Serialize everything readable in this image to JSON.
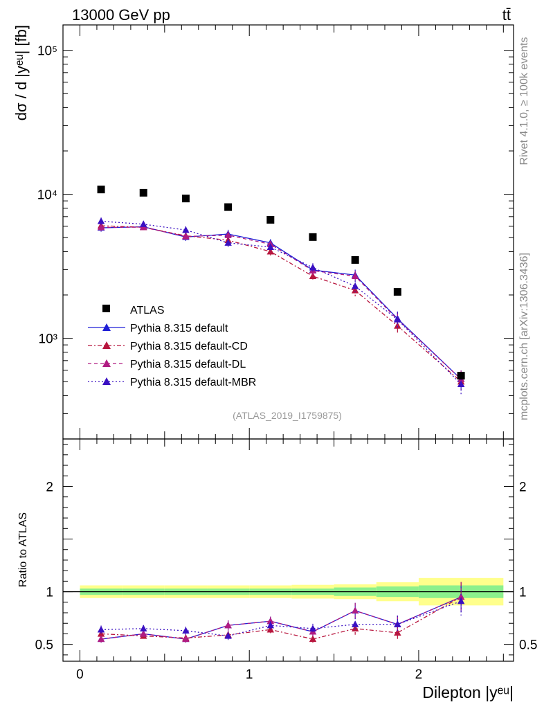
{
  "header": {
    "energy_label": "13000 GeV pp",
    "process_label": "tt̄",
    "side_label_top": "Rivet 4.1.0, ≥ 100k events",
    "side_label_bottom": "mcplots.cern.ch [arXiv:1306.3436]",
    "analysis_id": "(ATLAS_2019_I1759875)"
  },
  "chart_data": {
    "type": "line",
    "title": "",
    "xlabel": "Dilepton |yᵉᵘ|",
    "ylabel": "dσ / d |yᵉᵘ| [fb]",
    "ratio_ylabel": "Ratio to ATLAS",
    "xlim": [
      -0.1,
      2.56
    ],
    "ylim": [
      200,
      150000
    ],
    "yscale": "log",
    "ratio_ylim": [
      0.34,
      2.45
    ],
    "x_ticks": [
      0,
      1,
      2
    ],
    "x_tick_labels": [
      "0",
      "1",
      "2"
    ],
    "y_ticks": [
      1000,
      10000,
      100000
    ],
    "y_tick_labels": [
      "10³",
      "10⁴",
      "10⁵"
    ],
    "ratio_ticks": [
      0.5,
      1,
      2
    ],
    "ratio_tick_labels": [
      "0.5",
      "1",
      "2"
    ],
    "bins": [
      [
        0,
        0.25
      ],
      [
        0.25,
        0.5
      ],
      [
        0.5,
        0.75
      ],
      [
        0.75,
        1.0
      ],
      [
        1.0,
        1.25
      ],
      [
        1.25,
        1.5
      ],
      [
        1.5,
        1.75
      ],
      [
        1.75,
        2.0
      ],
      [
        2.0,
        2.5
      ]
    ],
    "x": [
      0.125,
      0.375,
      0.625,
      0.875,
      1.125,
      1.375,
      1.625,
      1.875,
      2.25
    ],
    "data": {
      "name": "ATLAS",
      "values": [
        10800,
        10250,
        9350,
        8150,
        6650,
        5050,
        3500,
        2100,
        550
      ],
      "band_inner": [
        0.03,
        0.03,
        0.03,
        0.03,
        0.03,
        0.03,
        0.04,
        0.05,
        0.06
      ],
      "band_outer": [
        0.06,
        0.06,
        0.06,
        0.06,
        0.06,
        0.065,
        0.07,
        0.09,
        0.13
      ]
    },
    "series": [
      {
        "name": "Pythia 8.315 default",
        "color": "#1f1fd6",
        "dash": "solid",
        "values": [
          5850,
          5950,
          5050,
          5300,
          4600,
          2980,
          2750,
          1370,
          520
        ],
        "errors": [
          0.06,
          0.05,
          0.06,
          0.07,
          0.06,
          0.07,
          0.09,
          0.12,
          0.15
        ],
        "ratios": [
          0.55,
          0.6,
          0.55,
          0.68,
          0.72,
          0.62,
          0.82,
          0.69,
          0.95
        ]
      },
      {
        "name": "Pythia 8.315 default-CD",
        "color": "#b8163e",
        "dash": "6,3,2,3",
        "values": [
          6050,
          5900,
          5150,
          4800,
          4000,
          2700,
          2150,
          1220,
          500
        ],
        "errors": [
          0.06,
          0.05,
          0.06,
          0.07,
          0.06,
          0.07,
          0.09,
          0.12,
          0.15
        ],
        "ratios": [
          0.6,
          0.58,
          0.56,
          0.59,
          0.64,
          0.55,
          0.65,
          0.61,
          0.95
        ]
      },
      {
        "name": "Pythia 8.315 default-DL",
        "color": "#b01c82",
        "dash": "5,4",
        "values": [
          5900,
          5900,
          5100,
          5200,
          4500,
          2950,
          2700,
          1350,
          520
        ],
        "errors": [
          0.06,
          0.05,
          0.06,
          0.07,
          0.06,
          0.07,
          0.09,
          0.12,
          0.15
        ],
        "ratios": [
          0.55,
          0.6,
          0.55,
          0.68,
          0.72,
          0.62,
          0.82,
          0.69,
          0.95
        ]
      },
      {
        "name": "Pythia 8.315 default-MBR",
        "color": "#3a10c2",
        "dash": "2,3",
        "values": [
          6500,
          6200,
          5650,
          4600,
          4300,
          3100,
          2300,
          1350,
          480
        ],
        "errors": [
          0.06,
          0.05,
          0.06,
          0.07,
          0.06,
          0.07,
          0.09,
          0.12,
          0.15
        ],
        "ratios": [
          0.64,
          0.65,
          0.63,
          0.58,
          0.68,
          0.65,
          0.69,
          0.69,
          0.91
        ]
      }
    ],
    "legend_position": "lower-left"
  }
}
